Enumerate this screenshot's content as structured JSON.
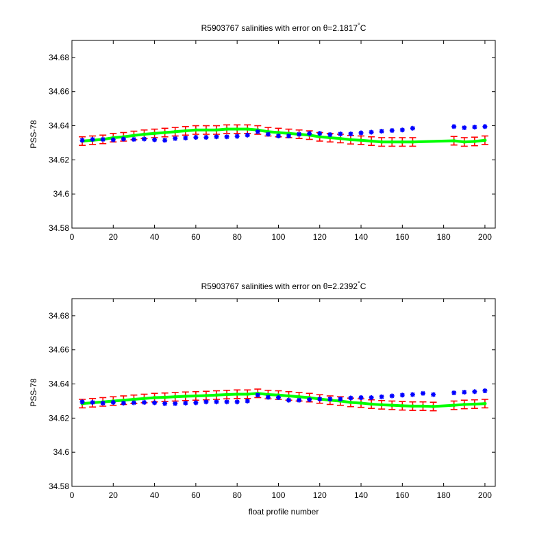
{
  "chart_data": [
    {
      "type": "scatter",
      "title": "R5903767 salinities with error on θ=2.1817°C",
      "title_parts": {
        "prefix": "R5903767 salinities with error on θ=2.1817",
        "degree": "°",
        "unit": "C"
      },
      "xlabel": "",
      "ylabel": "PSS-78",
      "xlim": [
        0,
        205
      ],
      "ylim": [
        34.58,
        34.69
      ],
      "x_ticks": [
        "0",
        "20",
        "40",
        "60",
        "80",
        "100",
        "120",
        "140",
        "160",
        "180",
        "200"
      ],
      "y_ticks": [
        "34.58",
        "34.6",
        "34.62",
        "34.64",
        "34.66",
        "34.68"
      ],
      "grid": false,
      "colors": {
        "measured": "#0000ff",
        "mapped": "#00ff00",
        "error": "#ff0000"
      },
      "series": [
        {
          "key": "measured",
          "marker": "star",
          "x": [
            5,
            10,
            15,
            20,
            25,
            30,
            35,
            40,
            45,
            50,
            55,
            60,
            65,
            70,
            75,
            80,
            85,
            90,
            95,
            100,
            105,
            110,
            115,
            120,
            125,
            130,
            135,
            140,
            145,
            150,
            155,
            160,
            165,
            185,
            190,
            195,
            200
          ],
          "y": [
            34.6315,
            34.632,
            34.632,
            34.6318,
            34.6322,
            34.632,
            34.6322,
            34.6318,
            34.6315,
            34.6325,
            34.6328,
            34.6332,
            34.6332,
            34.6335,
            34.6335,
            34.6338,
            34.6345,
            34.6365,
            34.635,
            34.634,
            34.634,
            34.635,
            34.6355,
            34.6355,
            34.6348,
            34.6352,
            34.6352,
            34.6358,
            34.6362,
            34.6368,
            34.6372,
            34.6375,
            34.6385,
            34.6395,
            34.6388,
            34.6392,
            34.6395
          ]
        },
        {
          "key": "mapped",
          "marker": "dot",
          "x": [
            5,
            10,
            15,
            20,
            25,
            30,
            35,
            40,
            45,
            50,
            55,
            60,
            65,
            70,
            75,
            80,
            85,
            90,
            95,
            100,
            105,
            110,
            115,
            120,
            125,
            130,
            135,
            140,
            145,
            150,
            155,
            160,
            165,
            185,
            190,
            195,
            200
          ],
          "y": [
            34.631,
            34.6315,
            34.632,
            34.633,
            34.6335,
            34.6343,
            34.635,
            34.6355,
            34.636,
            34.6365,
            34.637,
            34.6375,
            34.6375,
            34.6375,
            34.638,
            34.638,
            34.638,
            34.6375,
            34.6365,
            34.636,
            34.6355,
            34.635,
            34.6345,
            34.6335,
            34.633,
            34.6325,
            34.6318,
            34.6315,
            34.631,
            34.6305,
            34.6305,
            34.6305,
            34.6305,
            34.6312,
            34.6305,
            34.6308,
            34.6315
          ]
        },
        {
          "key": "error",
          "marker": "errorbar",
          "x": [
            5,
            10,
            15,
            20,
            25,
            30,
            35,
            40,
            45,
            50,
            55,
            60,
            65,
            70,
            75,
            80,
            85,
            90,
            95,
            100,
            105,
            110,
            115,
            120,
            125,
            130,
            135,
            140,
            145,
            150,
            155,
            160,
            165,
            185,
            190,
            195,
            200
          ],
          "y": [
            34.631,
            34.6315,
            34.632,
            34.633,
            34.6335,
            34.6343,
            34.635,
            34.6355,
            34.636,
            34.6365,
            34.637,
            34.6375,
            34.6375,
            34.6375,
            34.638,
            34.638,
            34.638,
            34.6375,
            34.6365,
            34.636,
            34.6355,
            34.635,
            34.6345,
            34.6335,
            34.633,
            34.6325,
            34.6318,
            34.6315,
            34.631,
            34.6305,
            34.6305,
            34.6305,
            34.6305,
            34.6312,
            34.6305,
            34.6308,
            34.6315
          ],
          "err": [
            0.0025,
            0.0025,
            0.0025,
            0.0025,
            0.0025,
            0.0025,
            0.0025,
            0.0025,
            0.0025,
            0.0025,
            0.0025,
            0.0025,
            0.0025,
            0.0025,
            0.0025,
            0.0025,
            0.0025,
            0.0025,
            0.0025,
            0.0025,
            0.0025,
            0.0025,
            0.0025,
            0.0025,
            0.0025,
            0.0025,
            0.0025,
            0.0025,
            0.0025,
            0.0025,
            0.0025,
            0.0025,
            0.0025,
            0.0025,
            0.0025,
            0.0025,
            0.0025
          ]
        }
      ]
    },
    {
      "type": "scatter",
      "title": "R5903767 salinities with error on θ=2.2392°C",
      "title_parts": {
        "prefix": "R5903767 salinities with error on θ=2.2392",
        "degree": "°",
        "unit": "C"
      },
      "xlabel": "float profile number",
      "ylabel": "PSS-78",
      "xlim": [
        0,
        205
      ],
      "ylim": [
        34.58,
        34.69
      ],
      "x_ticks": [
        "0",
        "20",
        "40",
        "60",
        "80",
        "100",
        "120",
        "140",
        "160",
        "180",
        "200"
      ],
      "y_ticks": [
        "34.58",
        "34.6",
        "34.62",
        "34.64",
        "34.66",
        "34.68"
      ],
      "grid": false,
      "colors": {
        "measured": "#0000ff",
        "mapped": "#00ff00",
        "error": "#ff0000"
      },
      "series": [
        {
          "key": "measured",
          "marker": "star",
          "x": [
            5,
            10,
            15,
            20,
            25,
            30,
            35,
            40,
            45,
            50,
            55,
            60,
            65,
            70,
            75,
            80,
            85,
            90,
            95,
            100,
            105,
            110,
            115,
            120,
            125,
            130,
            135,
            140,
            145,
            150,
            155,
            160,
            165,
            170,
            175,
            185,
            190,
            195,
            200
          ],
          "y": [
            34.6295,
            34.6292,
            34.6288,
            34.6292,
            34.6288,
            34.629,
            34.6292,
            34.629,
            34.6285,
            34.6285,
            34.6288,
            34.629,
            34.6295,
            34.6295,
            34.6295,
            34.6295,
            34.63,
            34.6335,
            34.6322,
            34.632,
            34.6305,
            34.6305,
            34.6308,
            34.6312,
            34.6312,
            34.6312,
            34.6318,
            34.632,
            34.632,
            34.6325,
            34.633,
            34.6335,
            34.6338,
            34.6345,
            34.6338,
            34.6348,
            34.6352,
            34.6355,
            34.636
          ]
        },
        {
          "key": "mapped",
          "marker": "dot",
          "x": [
            5,
            10,
            15,
            20,
            25,
            30,
            35,
            40,
            45,
            50,
            55,
            60,
            65,
            70,
            75,
            80,
            85,
            90,
            95,
            100,
            105,
            110,
            115,
            120,
            125,
            130,
            135,
            140,
            145,
            150,
            155,
            160,
            165,
            170,
            175,
            185,
            190,
            195,
            200
          ],
          "y": [
            34.6285,
            34.629,
            34.6295,
            34.63,
            34.6305,
            34.631,
            34.6315,
            34.632,
            34.6322,
            34.6325,
            34.6328,
            34.633,
            34.6332,
            34.6335,
            34.6338,
            34.634,
            34.634,
            34.6345,
            34.6338,
            34.6335,
            34.633,
            34.6325,
            34.632,
            34.6312,
            34.6305,
            34.63,
            34.6292,
            34.6288,
            34.6282,
            34.6278,
            34.6275,
            34.6272,
            34.627,
            34.627,
            34.6268,
            34.6275,
            34.628,
            34.6282,
            34.6285
          ]
        },
        {
          "key": "error",
          "marker": "errorbar",
          "x": [
            5,
            10,
            15,
            20,
            25,
            30,
            35,
            40,
            45,
            50,
            55,
            60,
            65,
            70,
            75,
            80,
            85,
            90,
            95,
            100,
            105,
            110,
            115,
            120,
            125,
            130,
            135,
            140,
            145,
            150,
            155,
            160,
            165,
            170,
            175,
            185,
            190,
            195,
            200
          ],
          "y": [
            34.6285,
            34.629,
            34.6295,
            34.63,
            34.6305,
            34.631,
            34.6315,
            34.632,
            34.6322,
            34.6325,
            34.6328,
            34.633,
            34.6332,
            34.6335,
            34.6338,
            34.634,
            34.634,
            34.6345,
            34.6338,
            34.6335,
            34.633,
            34.6325,
            34.632,
            34.6312,
            34.6305,
            34.63,
            34.6292,
            34.6288,
            34.6282,
            34.6278,
            34.6275,
            34.6272,
            34.627,
            34.627,
            34.6268,
            34.6275,
            34.628,
            34.6282,
            34.6285
          ],
          "err": [
            0.0025,
            0.0025,
            0.0025,
            0.0025,
            0.0025,
            0.0025,
            0.0025,
            0.0025,
            0.0025,
            0.0025,
            0.0025,
            0.0025,
            0.0025,
            0.0025,
            0.0025,
            0.0025,
            0.0025,
            0.0025,
            0.0025,
            0.0025,
            0.0025,
            0.0025,
            0.0025,
            0.0025,
            0.0025,
            0.0025,
            0.0025,
            0.0025,
            0.0025,
            0.0025,
            0.0025,
            0.0025,
            0.0025,
            0.0025,
            0.0025,
            0.0025,
            0.0025,
            0.0025,
            0.0025
          ]
        }
      ]
    }
  ]
}
